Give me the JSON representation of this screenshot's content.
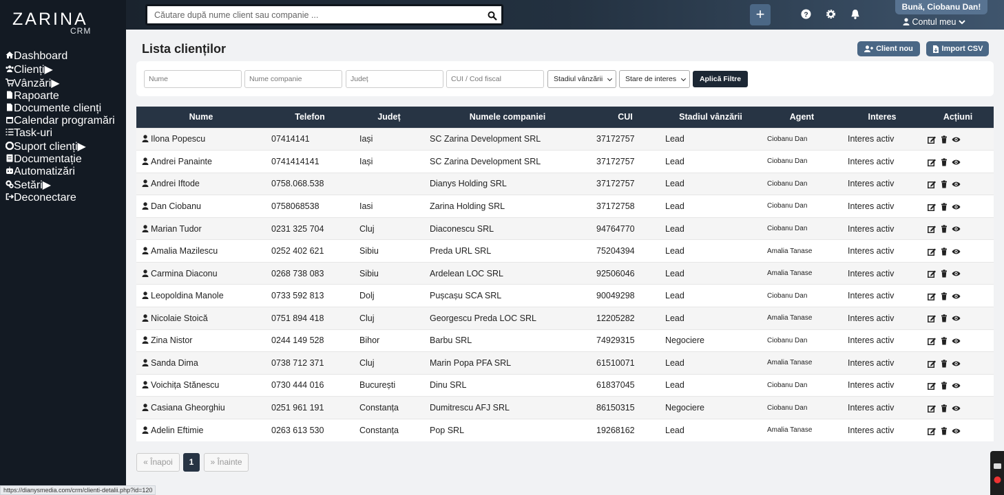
{
  "brand": {
    "name": "ZARINA",
    "sub": "CRM"
  },
  "topbar": {
    "search_placeholder": "Căutare după nume client sau companie ...",
    "greeting": "Bună, Ciobanu Dan!",
    "account": "Contul meu"
  },
  "sidebar": {
    "active": 1,
    "items": [
      {
        "label": "Dashboard",
        "submenu": false
      },
      {
        "label": "Clienți",
        "submenu": true
      },
      {
        "label": "Vânzări",
        "submenu": true
      },
      {
        "label": "Rapoarte",
        "submenu": false
      },
      {
        "label": "Documente clienți",
        "submenu": false
      },
      {
        "label": "Calendar programări",
        "submenu": false
      },
      {
        "label": "Task-uri",
        "submenu": false
      },
      {
        "label": "Suport clienți",
        "submenu": true
      },
      {
        "label": "Documentație",
        "submenu": false
      },
      {
        "label": "Automatizări",
        "submenu": false
      },
      {
        "label": "Setări",
        "submenu": true
      },
      {
        "label": "Deconectare",
        "submenu": false
      }
    ]
  },
  "page": {
    "title": "Lista clienților",
    "buttons": [
      "Client nou",
      "Import CSV"
    ]
  },
  "filters": {
    "inputs": [
      "Nume",
      "Nume companie",
      "Județ",
      "CUI / Cod fiscal"
    ],
    "selects": [
      "Stadiul vânzării",
      "Stare de interes"
    ],
    "apply": "Aplică Filtre"
  },
  "table": {
    "columns": [
      "Nume",
      "Telefon",
      "Județ",
      "Numele companiei",
      "CUI",
      "Stadiul vânzării",
      "Agent",
      "Interes",
      "Acțiuni"
    ],
    "rows": [
      [
        "Ilona Popescu",
        "07414141",
        "Iași",
        "SC Zarina Development SRL",
        "37172757",
        "Lead",
        "Ciobanu Dan",
        "Interes activ"
      ],
      [
        "Andrei Panainte",
        "0741414141",
        "Iași",
        "SC Zarina Development SRL",
        "37172757",
        "Lead",
        "Ciobanu Dan",
        "Interes activ"
      ],
      [
        "Andrei Iftode",
        "0758.068.538",
        "",
        "Dianys Holding SRL",
        "37172757",
        "Lead",
        "Ciobanu Dan",
        "Interes activ"
      ],
      [
        "Dan Ciobanu",
        "0758068538",
        "Iasi",
        "Zarina Holding SRL",
        "37172758",
        "Lead",
        "Ciobanu Dan",
        "Interes activ"
      ],
      [
        "Marian Tudor",
        "0231 325 704",
        "Cluj",
        "Diaconescu SRL",
        "94764770",
        "Lead",
        "Ciobanu Dan",
        "Interes activ"
      ],
      [
        "Amalia Mazilescu",
        "0252 402 621",
        "Sibiu",
        "Preda URL SRL",
        "75204394",
        "Lead",
        "Amalia Tanase",
        "Interes activ"
      ],
      [
        "Carmina Diaconu",
        "0268 738 083",
        "Sibiu",
        "Ardelean LOC SRL",
        "92506046",
        "Lead",
        "Amalia Tanase",
        "Interes activ"
      ],
      [
        "Leopoldina Manole",
        "0733 592 813",
        "Dolj",
        "Pușcașu SCA SRL",
        "90049298",
        "Lead",
        "Ciobanu Dan",
        "Interes activ"
      ],
      [
        "Nicolaie Stoică",
        "0751 894 418",
        "Cluj",
        "Georgescu Preda LOC SRL",
        "12205282",
        "Lead",
        "Amalia Tanase",
        "Interes activ"
      ],
      [
        "Zina Nistor",
        "0244 149 528",
        "Bihor",
        "Barbu SRL",
        "74929315",
        "Negociere",
        "Ciobanu Dan",
        "Interes activ"
      ],
      [
        "Sanda Dima",
        "0738 712 371",
        "Cluj",
        "Marin Popa PFA SRL",
        "61510071",
        "Lead",
        "Amalia Tanase",
        "Interes activ"
      ],
      [
        "Voichița Stănescu",
        "0730 444 016",
        "București",
        "Dinu SRL",
        "61837045",
        "Lead",
        "Ciobanu Dan",
        "Interes activ"
      ],
      [
        "Casiana Gheorghiu",
        "0251 961 191",
        "Constanța",
        "Dumitrescu AFJ SRL",
        "86150315",
        "Negociere",
        "Ciobanu Dan",
        "Interes activ"
      ],
      [
        "Adelin Eftimie",
        "0263 613 530",
        "Constanța",
        "Pop SRL",
        "19268162",
        "Lead",
        "Amalia Tanase",
        "Interes activ"
      ]
    ]
  },
  "pagination": {
    "prev": "« Înapoi",
    "current": "1",
    "next": "» Înainte"
  },
  "status_url": "https://dianysmedia.com/crm/clienti-detalii.php?id=120"
}
